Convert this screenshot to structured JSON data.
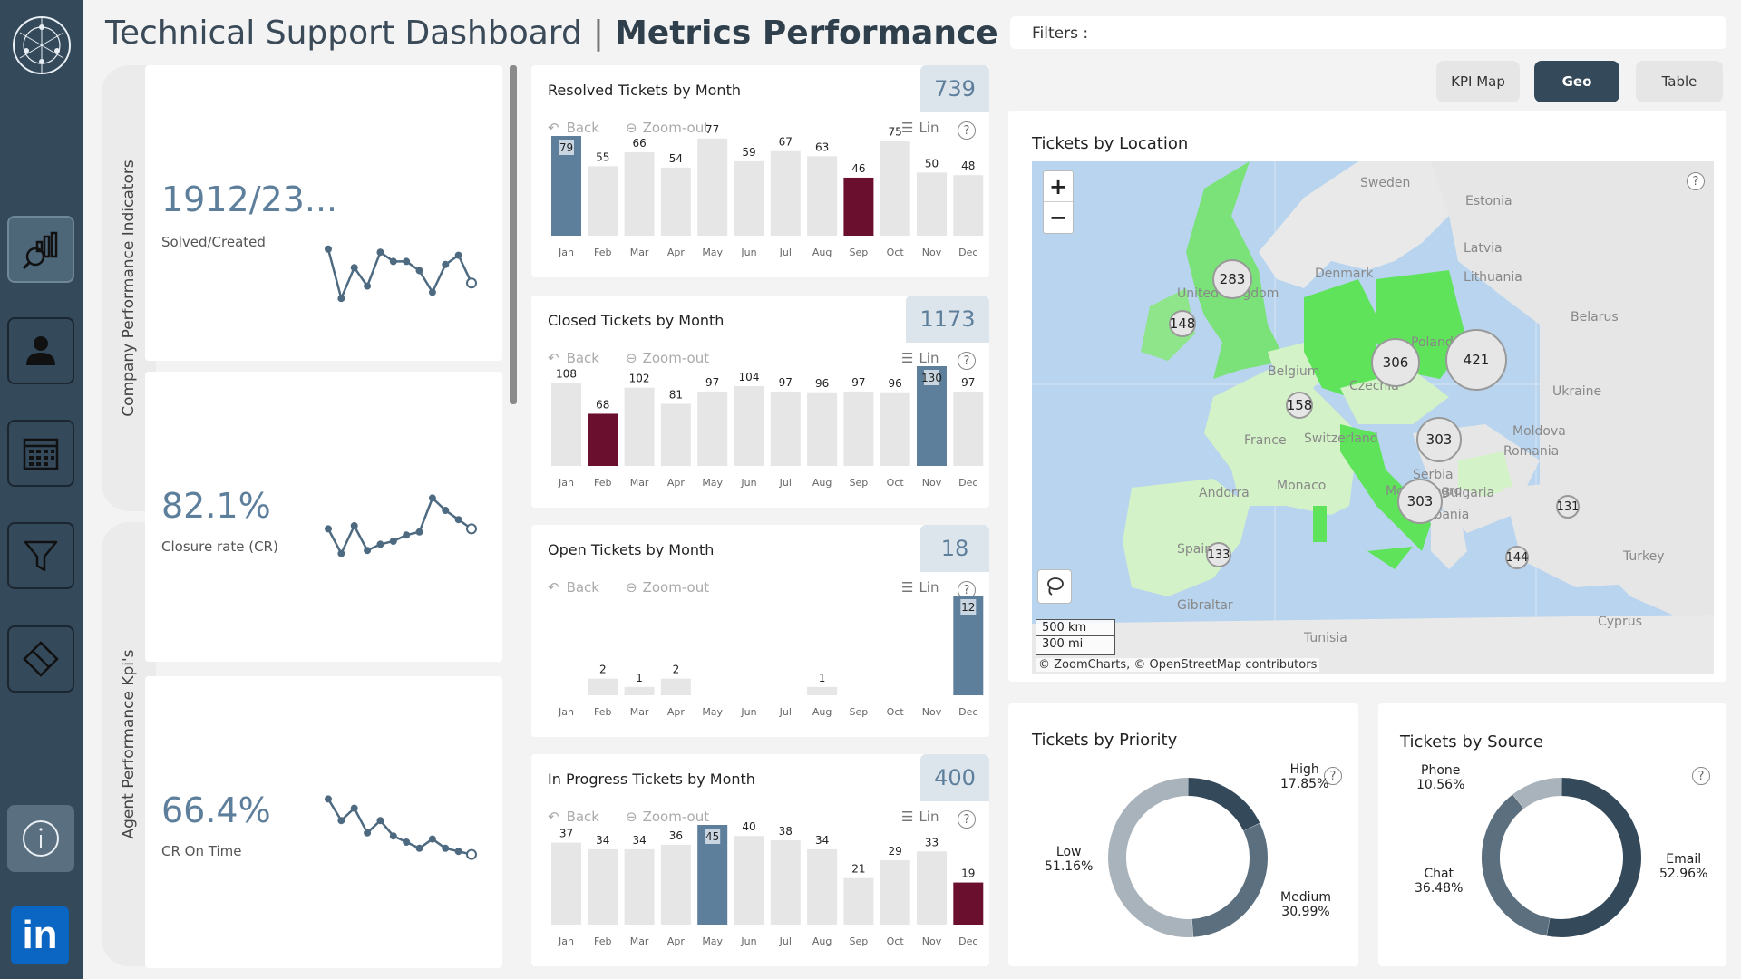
{
  "header": {
    "title_main": "Technical Support Dashboard",
    "title_sep": "|",
    "title_sub": "Metrics Performance",
    "filters_label": "Filters :"
  },
  "sidebar": {
    "items": [
      {
        "icon": "network-logo-icon"
      },
      {
        "icon": "analytics-icon"
      },
      {
        "icon": "user-icon"
      },
      {
        "icon": "calendar-icon"
      },
      {
        "icon": "filter-icon"
      },
      {
        "icon": "eraser-icon"
      },
      {
        "icon": "info-icon"
      },
      {
        "icon": "linkedin-icon",
        "label": "in"
      }
    ]
  },
  "view_buttons": [
    {
      "label": "KPI Map",
      "active": false
    },
    {
      "label": "Geo",
      "active": true
    },
    {
      "label": "Table",
      "active": false
    }
  ],
  "sections": {
    "company_kpis": "Company Performance Indicators",
    "agent_kpis": "Agent Performance Kpi's"
  },
  "kpis": [
    {
      "value": "1912/23...",
      "label": "Solved/Created",
      "spark": [
        0.9,
        0.1,
        0.6,
        0.3,
        0.85,
        0.7,
        0.7,
        0.55,
        0.2,
        0.65,
        0.8,
        0.35
      ]
    },
    {
      "value": "82.1%",
      "label": "Closure rate (CR)",
      "spark": [
        0.45,
        0.05,
        0.5,
        0.1,
        0.2,
        0.25,
        0.35,
        0.4,
        0.95,
        0.75,
        0.6,
        0.45
      ]
    },
    {
      "value": "66.4%",
      "label": "CR On Time",
      "spark": [
        0.95,
        0.6,
        0.8,
        0.4,
        0.6,
        0.35,
        0.25,
        0.15,
        0.3,
        0.15,
        0.1,
        0.05
      ]
    }
  ],
  "toolbar": {
    "back": "Back",
    "zoom_out": "Zoom-out",
    "lin": "Lin",
    "help": "?"
  },
  "months": [
    "Jan",
    "Feb",
    "Mar",
    "Apr",
    "May",
    "Jun",
    "Jul",
    "Aug",
    "Sep",
    "Oct",
    "Nov",
    "Dec"
  ],
  "charts": [
    {
      "title": "Resolved Tickets by Month",
      "total": "739",
      "chart_data": {
        "type": "bar",
        "values": [
          79,
          55,
          66,
          54,
          77,
          59,
          67,
          63,
          46,
          75,
          50,
          48
        ],
        "highlight_max": 0,
        "highlight_min": 8
      }
    },
    {
      "title": "Closed Tickets by Month",
      "total": "1173",
      "chart_data": {
        "type": "bar",
        "values": [
          108,
          68,
          102,
          81,
          97,
          104,
          97,
          96,
          97,
          96,
          130,
          97
        ],
        "highlight_max": 10,
        "highlight_min": 1
      }
    },
    {
      "title": "Open Tickets by Month",
      "total": "18",
      "chart_data": {
        "type": "bar",
        "values": [
          null,
          2,
          1,
          2,
          null,
          null,
          null,
          1,
          null,
          null,
          null,
          12
        ],
        "highlight_max": 11,
        "highlight_min": -1
      }
    },
    {
      "title": "In Progress Tickets by Month",
      "total": "400",
      "chart_data": {
        "type": "bar",
        "values": [
          37,
          34,
          34,
          36,
          45,
          40,
          38,
          34,
          21,
          29,
          33,
          19
        ],
        "highlight_max": 4,
        "highlight_min": 11
      }
    }
  ],
  "map": {
    "title": "Tickets by Location",
    "zoom_in": "+",
    "zoom_out": "−",
    "scale_km": "500 km",
    "scale_mi": "300 mi",
    "attribution": "© ZoomCharts, © OpenStreetMap contributors",
    "clusters": [
      "283",
      "148",
      "306",
      "421",
      "158",
      "303",
      "303",
      "133",
      "131",
      "144"
    ],
    "places": [
      "Sweden",
      "Estonia",
      "Latvia",
      "Denmark",
      "Lithuania",
      "United Kingdom",
      "Belarus",
      "Poland",
      "Belgium",
      "Czechia",
      "Ukraine",
      "France",
      "Switzerland",
      "Moldova",
      "Romania",
      "Serbia",
      "Monaco",
      "Andorra",
      "Bulgaria",
      "Montenegro",
      "Albania",
      "Spain",
      "Turkey",
      "Gibraltar",
      "Tunisia",
      "Cyprus"
    ]
  },
  "priority": {
    "title": "Tickets by Priority",
    "chart_data": {
      "type": "pie",
      "donut": true,
      "slices": [
        {
          "name": "High",
          "pct": 17.85,
          "label": "17.85%"
        },
        {
          "name": "Medium",
          "pct": 30.99,
          "label": "30.99%"
        },
        {
          "name": "Low",
          "pct": 51.16,
          "label": "51.16%"
        }
      ],
      "colors": [
        "#34495a",
        "#5b6f7e",
        "#a9b3bb"
      ]
    }
  },
  "source": {
    "title": "Tickets by Source",
    "chart_data": {
      "type": "pie",
      "donut": true,
      "slices": [
        {
          "name": "Email",
          "pct": 52.96,
          "label": "52.96%"
        },
        {
          "name": "Chat",
          "pct": 36.48,
          "label": "36.48%"
        },
        {
          "name": "Phone",
          "pct": 10.56,
          "label": "10.56%"
        }
      ],
      "colors": [
        "#34495a",
        "#5b6f7e",
        "#a9b3bb"
      ]
    }
  },
  "colors": {
    "bar": "#e6e6e6",
    "bar_max": "#5d7f9c",
    "bar_min": "#6b0f2e",
    "sidebar": "#34495a",
    "accent": "#5d7f9c"
  }
}
